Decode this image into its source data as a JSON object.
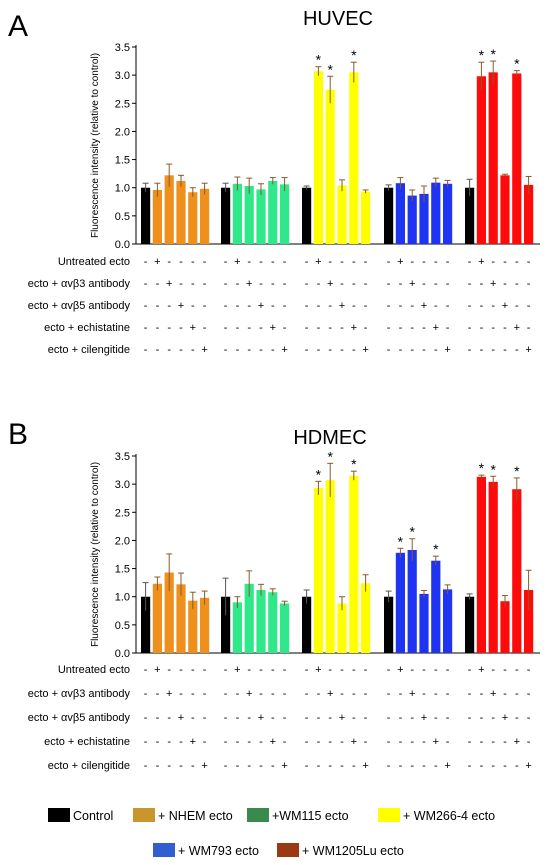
{
  "colors": {
    "control": "#000000",
    "nhem": "#f0901c",
    "wm115": "#2fe88a",
    "wm266": "#ffff00",
    "wm793": "#1f34f0",
    "wm1205": "#ff0a0a",
    "legend_nhem": "#c8962a",
    "legend_wm115": "#3a8a4e",
    "legend_wm266": "#ffff00",
    "legend_wm793": "#2f5fd0",
    "legend_wm1205": "#9a3a14"
  },
  "chart_data": [
    {
      "type": "bar",
      "panel": "A",
      "title": "HUVEC",
      "ylabel": "Fluorescence intensity (relative to control)",
      "ylim": [
        0,
        3.5
      ],
      "yticks": [
        "0.0",
        "0.5",
        "1.0",
        "1.5",
        "2.0",
        "2.5",
        "3.0",
        "3.5"
      ],
      "row_labels": [
        "Untreated ecto",
        "ecto + αvβ3 antibody",
        "ecto + αvβ5 antibody",
        "ecto + echistatine",
        "ecto + cilengitide"
      ],
      "groups": [
        {
          "series": "+ NHEM ecto",
          "values": [
            1.0,
            0.96,
            1.22,
            1.12,
            0.92,
            0.98
          ],
          "errors": [
            0.08,
            0.12,
            0.2,
            0.1,
            0.08,
            0.1
          ],
          "significant": [
            false,
            false,
            false,
            false,
            false,
            false
          ]
        },
        {
          "series": "+ WM115 ecto",
          "values": [
            1.0,
            1.07,
            1.03,
            0.97,
            1.12,
            1.06
          ],
          "errors": [
            0.08,
            0.12,
            0.14,
            0.1,
            0.06,
            0.12
          ],
          "significant": [
            false,
            false,
            false,
            false,
            false,
            false
          ]
        },
        {
          "series": "+ WM266-4 ecto",
          "values": [
            1.0,
            3.07,
            2.74,
            1.04,
            3.05,
            0.93
          ],
          "errors": [
            0.03,
            0.08,
            0.24,
            0.1,
            0.18,
            0.03
          ],
          "significant": [
            false,
            true,
            true,
            false,
            true,
            false
          ]
        },
        {
          "series": "+ WM793 ecto",
          "values": [
            1.0,
            1.08,
            0.86,
            0.89,
            1.09,
            1.07
          ],
          "errors": [
            0.05,
            0.1,
            0.1,
            0.14,
            0.08,
            0.06
          ],
          "significant": [
            false,
            false,
            false,
            false,
            false,
            false
          ]
        },
        {
          "series": "+ WM1205Lu ecto",
          "values": [
            1.0,
            2.98,
            3.05,
            1.22,
            3.03,
            1.05
          ],
          "errors": [
            0.15,
            0.25,
            0.2,
            0.02,
            0.05,
            0.15
          ],
          "significant": [
            false,
            true,
            true,
            false,
            true,
            false
          ]
        }
      ]
    },
    {
      "type": "bar",
      "panel": "B",
      "title": "HDMEC",
      "ylabel": "Fluorescence intensity (relative to control)",
      "ylim": [
        0,
        3.5
      ],
      "yticks": [
        "0.0",
        "0.5",
        "1.0",
        "1.5",
        "2.0",
        "2.5",
        "3.0",
        "3.5"
      ],
      "row_labels": [
        "Untreated ecto",
        "ecto + αvβ3 antibody",
        "ecto + αvβ5 antibody",
        "ecto + echistatine",
        "ecto + cilengitide"
      ],
      "groups": [
        {
          "series": "+ NHEM ecto",
          "values": [
            1.0,
            1.23,
            1.43,
            1.22,
            0.93,
            0.98
          ],
          "errors": [
            0.25,
            0.12,
            0.33,
            0.2,
            0.15,
            0.12
          ],
          "significant": [
            false,
            false,
            false,
            false,
            false,
            false
          ]
        },
        {
          "series": "+ WM115 ecto",
          "values": [
            1.0,
            0.9,
            1.23,
            1.12,
            1.08,
            0.88
          ],
          "errors": [
            0.33,
            0.1,
            0.23,
            0.1,
            0.06,
            0.04
          ],
          "significant": [
            false,
            false,
            false,
            false,
            false,
            false
          ]
        },
        {
          "series": "+ WM266-4 ecto",
          "values": [
            1.0,
            2.93,
            3.07,
            0.88,
            3.15,
            1.24
          ],
          "errors": [
            0.12,
            0.12,
            0.3,
            0.12,
            0.08,
            0.15
          ],
          "significant": [
            false,
            true,
            true,
            false,
            true,
            false
          ]
        },
        {
          "series": "+ WM793 ecto",
          "values": [
            1.0,
            1.78,
            1.83,
            1.05,
            1.64,
            1.13
          ],
          "errors": [
            0.1,
            0.08,
            0.2,
            0.06,
            0.08,
            0.08
          ],
          "significant": [
            false,
            true,
            true,
            false,
            true,
            false
          ]
        },
        {
          "series": "+ WM1205Lu ecto",
          "values": [
            1.0,
            3.13,
            3.04,
            0.92,
            2.91,
            1.12
          ],
          "errors": [
            0.05,
            0.03,
            0.1,
            0.1,
            0.2,
            0.35
          ],
          "significant": [
            false,
            true,
            true,
            false,
            true,
            false
          ]
        }
      ]
    }
  ],
  "legend": [
    {
      "label": "Control",
      "color_key": "control"
    },
    {
      "label": "+ NHEM ecto",
      "color_key": "legend_nhem"
    },
    {
      "label": "+WM115 ecto",
      "color_key": "legend_wm115"
    },
    {
      "label": "+ WM266-4 ecto",
      "color_key": "legend_wm266"
    },
    {
      "label": "+ WM793 ecto",
      "color_key": "legend_wm793"
    },
    {
      "label": "+ WM1205Lu ecto",
      "color_key": "legend_wm1205"
    }
  ]
}
